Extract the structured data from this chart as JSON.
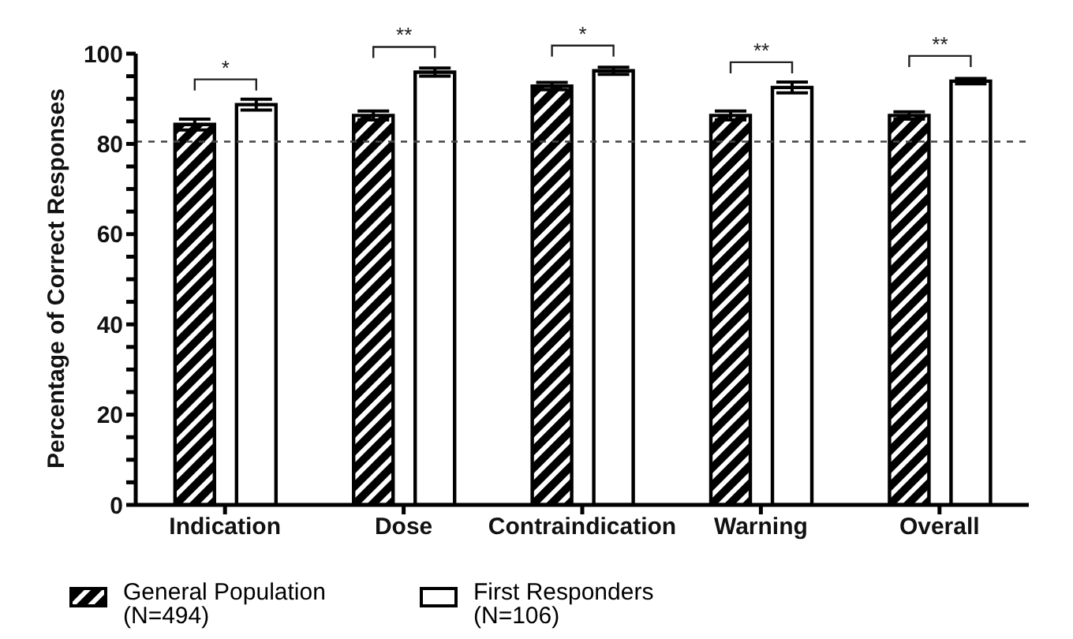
{
  "chart_data": {
    "type": "bar",
    "ylabel": "Percentage of Correct Responses",
    "categories": [
      "Indication",
      "Dose",
      "Contraindication",
      "Warning",
      "Overall"
    ],
    "series": [
      {
        "name": "General Population (N=494)",
        "color": "#000000",
        "values": [
          84.3,
          86.3,
          92.8,
          86.3,
          86.3
        ],
        "errors": [
          1.2,
          1.0,
          0.8,
          1.0,
          0.8
        ]
      },
      {
        "name": "First Responders (N=106)",
        "color": "#ffffff",
        "values": [
          88.7,
          95.9,
          96.2,
          92.5,
          93.9
        ],
        "errors": [
          1.2,
          0.9,
          0.8,
          1.2,
          0.6
        ]
      }
    ],
    "ylim": [
      0,
      100
    ],
    "yticks": [
      0,
      {
        "value": 5,
        "label": null
      },
      {
        "value": 10,
        "label": null
      },
      {
        "value": 15,
        "label": null
      },
      20,
      {
        "value": 25,
        "label": null
      },
      {
        "value": 30,
        "label": null
      },
      {
        "value": 35,
        "label": null
      },
      40,
      {
        "value": 45,
        "label": null
      },
      {
        "value": 50,
        "label": null
      },
      {
        "value": 55,
        "label": null
      },
      60,
      {
        "value": 65,
        "label": null
      },
      {
        "value": 70,
        "label": null
      },
      {
        "value": 75,
        "label": null
      },
      80,
      {
        "value": 85,
        "label": null
      },
      {
        "value": 90,
        "label": null
      },
      {
        "value": 95,
        "label": null
      },
      100
    ],
    "ref_lines": [
      {
        "axis": "y",
        "value": 80.5,
        "color": "#444444",
        "line_style": "dashed"
      }
    ],
    "annotations": [
      "*",
      "**",
      "*",
      "**",
      "**"
    ],
    "grid": false,
    "legend": "bottom left"
  }
}
